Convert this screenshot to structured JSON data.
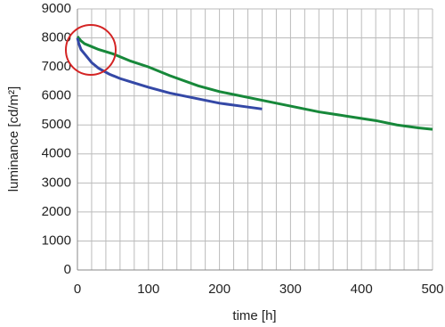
{
  "chart_data": {
    "type": "line",
    "x_label": "time [h]",
    "y_label": "luminance [cd/m²]",
    "xlim": [
      0,
      500
    ],
    "ylim": [
      0,
      9000
    ],
    "xticks": [
      0,
      100,
      200,
      300,
      400,
      500
    ],
    "yticks": [
      0,
      1000,
      2000,
      3000,
      4000,
      5000,
      6000,
      7000,
      8000,
      9000
    ],
    "xgrid": [
      0,
      20,
      40,
      60,
      80,
      100,
      120,
      140,
      160,
      180,
      200,
      220,
      240,
      260,
      280,
      300,
      320,
      340,
      360,
      380,
      400,
      420,
      440,
      460,
      480,
      500
    ],
    "grid": true,
    "series": [
      {
        "name": "green",
        "color": "#17883a",
        "x": [
          0,
          5,
          10,
          20,
          30,
          50,
          75,
          100,
          130,
          170,
          200,
          250,
          300,
          340,
          380,
          420,
          450,
          480,
          500
        ],
        "values": [
          8050,
          7900,
          7800,
          7700,
          7600,
          7450,
          7200,
          7000,
          6700,
          6350,
          6150,
          5900,
          5650,
          5450,
          5300,
          5150,
          5000,
          4900,
          4850
        ]
      },
      {
        "name": "blue",
        "color": "#3448a6",
        "x": [
          0,
          2,
          5,
          10,
          20,
          30,
          45,
          60,
          80,
          100,
          130,
          160,
          200,
          230,
          260
        ],
        "values": [
          8000,
          7800,
          7600,
          7450,
          7150,
          6950,
          6750,
          6600,
          6450,
          6300,
          6100,
          5950,
          5750,
          5650,
          5550
        ]
      }
    ]
  }
}
